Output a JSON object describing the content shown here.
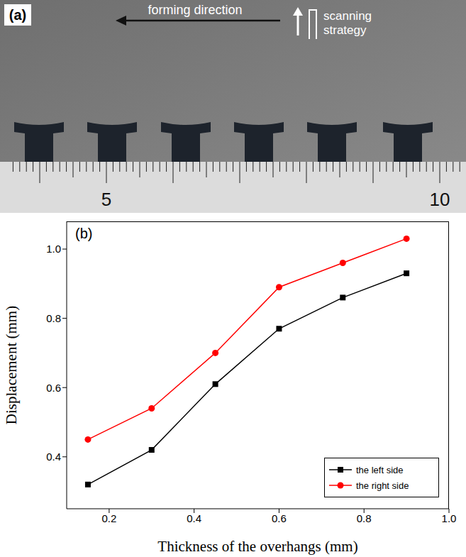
{
  "panel_a": {
    "label": "(a)",
    "annotations": [
      "forming direction",
      "scanning strategy"
    ],
    "ruler_labels": [
      5,
      10
    ]
  },
  "chart_data": {
    "type": "line",
    "title": "(b)",
    "x_label": "Thickness of the overhangs (mm)",
    "y_label": "Displacement (mm)",
    "x": [
      0.15,
      0.3,
      0.45,
      0.6,
      0.75,
      0.9
    ],
    "series": [
      {
        "name": "the left side",
        "color": "#000000",
        "marker": "square",
        "values": [
          0.32,
          0.42,
          0.61,
          0.77,
          0.86,
          0.93
        ]
      },
      {
        "name": "the right side",
        "color": "#ff0000",
        "marker": "circle",
        "values": [
          0.45,
          0.54,
          0.7,
          0.89,
          0.96,
          1.03
        ]
      }
    ],
    "xlim": [
      0.1,
      1.0
    ],
    "xticks": [
      0.2,
      0.4,
      0.6,
      0.8,
      {
        "value": 1.0,
        "label": "1.0"
      }
    ],
    "ylim": [
      0.25,
      1.08
    ],
    "yticks": [
      0.4,
      0.6,
      0.8,
      {
        "value": 1.0,
        "label": "1.0"
      }
    ],
    "grid": false,
    "legend": "lower right"
  }
}
